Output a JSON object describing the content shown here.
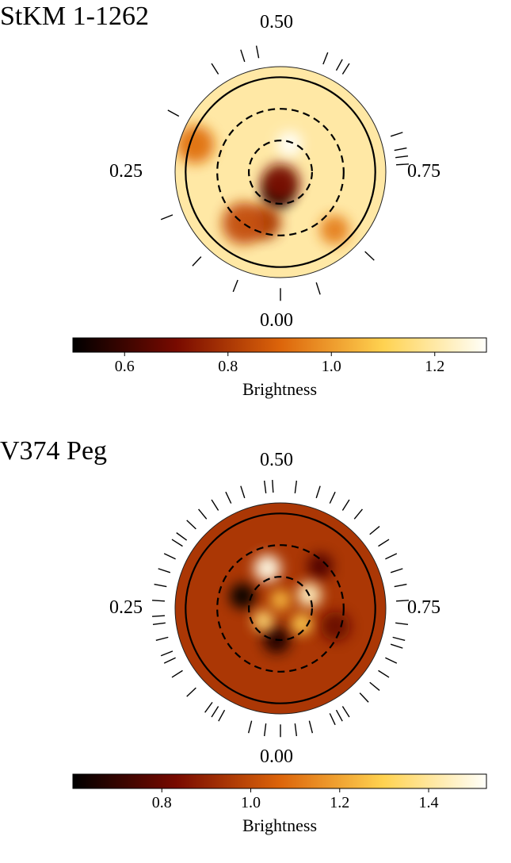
{
  "chart_data": [
    {
      "type": "heatmap",
      "projection": "polar",
      "title": "StKM 1-1262",
      "phase_labels": {
        "top": "0.50",
        "left": "0.25",
        "right": "0.75",
        "bottom": "0.00"
      },
      "colorbar": {
        "label": "Brightness",
        "range": [
          0.5,
          1.3
        ],
        "ticks": [
          "0.6",
          "0.8",
          "1.0",
          "1.2"
        ],
        "tick_values": [
          0.6,
          0.8,
          1.0,
          1.2
        ]
      },
      "latitude_circles_deg": [
        0,
        30,
        60
      ],
      "observed_phases": [
        0.0,
        0.06,
        0.12,
        0.19,
        0.33,
        0.41,
        0.45,
        0.47,
        0.56,
        0.58,
        0.59,
        0.7,
        0.72,
        0.73,
        0.74,
        0.87,
        0.95
      ],
      "spots": [
        {
          "phase": 0.02,
          "r": 0.2,
          "value": 0.5,
          "size": 0.14
        },
        {
          "phase": 0.0,
          "r": 0.1,
          "value": 0.7,
          "size": 0.18
        },
        {
          "phase": 0.05,
          "r": 0.5,
          "value": 0.8,
          "size": 0.16
        },
        {
          "phase": 0.1,
          "r": 0.6,
          "value": 0.85,
          "size": 0.2
        },
        {
          "phase": 0.55,
          "r": 0.28,
          "value": 1.3,
          "size": 0.12
        },
        {
          "phase": 0.3,
          "r": 0.85,
          "value": 0.92,
          "size": 0.18
        },
        {
          "phase": 0.88,
          "r": 0.75,
          "value": 0.95,
          "size": 0.14
        }
      ],
      "background_value": 1.2
    },
    {
      "type": "heatmap",
      "projection": "polar",
      "title": "V374 Peg",
      "phase_labels": {
        "top": "0.50",
        "left": "0.25",
        "right": "0.75",
        "bottom": "0.00"
      },
      "colorbar": {
        "label": "Brightness",
        "range": [
          0.6,
          1.53
        ],
        "ticks": [
          "0.8",
          "1.0",
          "1.2",
          "1.4"
        ],
        "tick_values": [
          0.8,
          1.0,
          1.2,
          1.4
        ]
      },
      "latitude_circles_deg": [
        0,
        30,
        60
      ],
      "observed_phases": [
        0.0,
        0.02,
        0.04,
        0.08,
        0.09,
        0.1,
        0.13,
        0.16,
        0.18,
        0.19,
        0.21,
        0.23,
        0.24,
        0.26,
        0.28,
        0.3,
        0.32,
        0.34,
        0.35,
        0.37,
        0.39,
        0.41,
        0.43,
        0.45,
        0.48,
        0.49,
        0.52,
        0.55,
        0.57,
        0.59,
        0.61,
        0.64,
        0.66,
        0.68,
        0.7,
        0.72,
        0.74,
        0.77,
        0.79,
        0.8,
        0.82,
        0.84,
        0.86,
        0.88,
        0.91,
        0.92,
        0.93,
        0.96,
        0.98
      ],
      "spots": [
        {
          "phase": 0.3,
          "r": 0.38,
          "value": 0.6,
          "size": 0.12
        },
        {
          "phase": 0.02,
          "r": 0.3,
          "value": 0.65,
          "size": 0.13
        },
        {
          "phase": 0.62,
          "r": 0.55,
          "value": 0.75,
          "size": 0.12
        },
        {
          "phase": 0.8,
          "r": 0.55,
          "value": 0.8,
          "size": 0.14
        },
        {
          "phase": 0.45,
          "r": 0.4,
          "value": 1.5,
          "size": 0.13
        },
        {
          "phase": 0.68,
          "r": 0.3,
          "value": 1.45,
          "size": 0.12
        },
        {
          "phase": 0.15,
          "r": 0.2,
          "value": 1.35,
          "size": 0.1
        },
        {
          "phase": 0.85,
          "r": 0.25,
          "value": 1.3,
          "size": 0.1
        },
        {
          "phase": 0.5,
          "r": 0.08,
          "value": 1.25,
          "size": 0.1
        }
      ],
      "background_value": 0.95
    }
  ]
}
